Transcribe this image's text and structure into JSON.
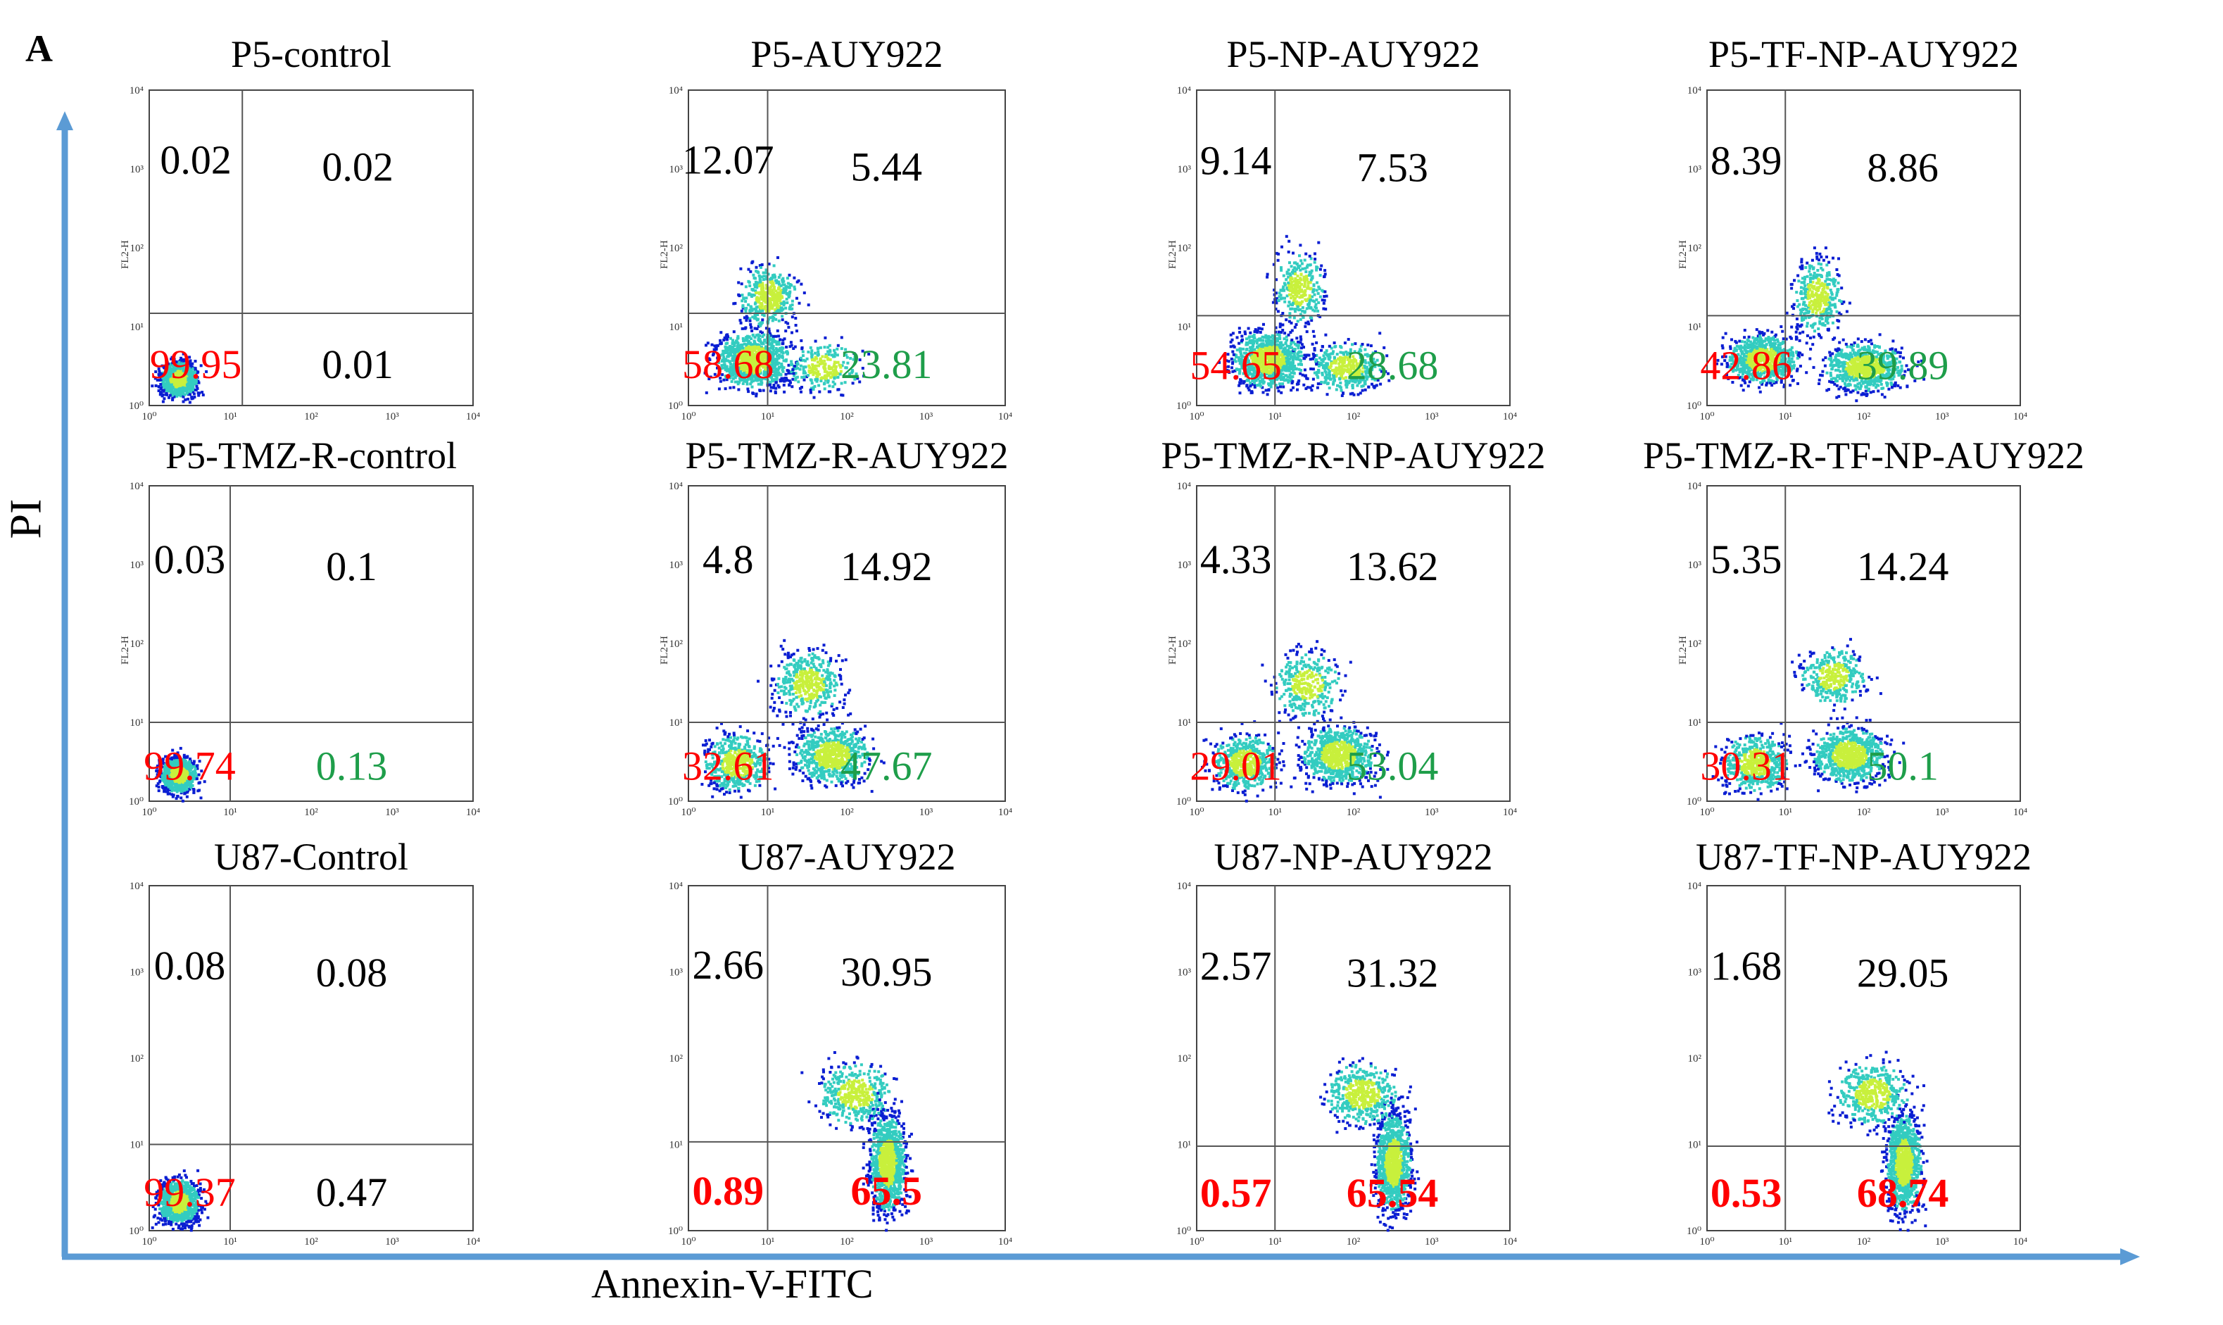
{
  "figure": {
    "panel_label": "A",
    "y_axis_label": "PI",
    "x_axis_label": "Annexin-V-FITC",
    "colors": {
      "axis_arrow": "#5b9bd5",
      "live_quadrant_text": "#ff0000",
      "early_apoptosis_text": "#1e9e4a",
      "other_quadrant_text": "#000000",
      "dot_dark": "#0a1ed2",
      "dot_light": "#33ccc0",
      "dot_core": "#c8f03c"
    },
    "small_axis": {
      "fl2_label": "FL2-H",
      "ticks": [
        "10⁰",
        "10¹",
        "10²",
        "10³",
        "10⁴"
      ]
    }
  },
  "chart_data": [
    {
      "type": "scatter",
      "title": "P5-control",
      "xlabel": "Annexin-V-FITC",
      "ylabel": "PI",
      "xlim": [
        1,
        10000
      ],
      "ylim": [
        1,
        10000
      ],
      "quadrants": {
        "upper_left": 0.02,
        "upper_right": 0.02,
        "lower_left": 99.95,
        "lower_right": 0.01
      }
    },
    {
      "type": "scatter",
      "title": "P5-AUY922",
      "xlabel": "Annexin-V-FITC",
      "ylabel": "PI",
      "xlim": [
        1,
        10000
      ],
      "ylim": [
        1,
        10000
      ],
      "quadrants": {
        "upper_left": 12.07,
        "upper_right": 5.44,
        "lower_left": 58.68,
        "lower_right": 23.81
      }
    },
    {
      "type": "scatter",
      "title": "P5-NP-AUY922",
      "xlabel": "Annexin-V-FITC",
      "ylabel": "PI",
      "xlim": [
        1,
        10000
      ],
      "ylim": [
        1,
        10000
      ],
      "quadrants": {
        "upper_left": 9.14,
        "upper_right": 7.53,
        "lower_left": 54.65,
        "lower_right": 28.68
      }
    },
    {
      "type": "scatter",
      "title": "P5-TF-NP-AUY922",
      "xlabel": "Annexin-V-FITC",
      "ylabel": "PI",
      "xlim": [
        1,
        10000
      ],
      "ylim": [
        1,
        10000
      ],
      "quadrants": {
        "upper_left": 8.39,
        "upper_right": 8.86,
        "lower_left": 42.86,
        "lower_right": 39.89
      }
    },
    {
      "type": "scatter",
      "title": "P5-TMZ-R-control",
      "xlabel": "Annexin-V-FITC",
      "ylabel": "PI",
      "xlim": [
        1,
        10000
      ],
      "ylim": [
        1,
        10000
      ],
      "quadrants": {
        "upper_left": 0.03,
        "upper_right": 0.1,
        "lower_left": 99.74,
        "lower_right": 0.13
      }
    },
    {
      "type": "scatter",
      "title": "P5-TMZ-R-AUY922",
      "xlabel": "Annexin-V-FITC",
      "ylabel": "PI",
      "xlim": [
        1,
        10000
      ],
      "ylim": [
        1,
        10000
      ],
      "quadrants": {
        "upper_left": 4.8,
        "upper_right": 14.92,
        "lower_left": 32.61,
        "lower_right": 47.67
      }
    },
    {
      "type": "scatter",
      "title": "P5-TMZ-R-NP-AUY922",
      "xlabel": "Annexin-V-FITC",
      "ylabel": "PI",
      "xlim": [
        1,
        10000
      ],
      "ylim": [
        1,
        10000
      ],
      "quadrants": {
        "upper_left": 4.33,
        "upper_right": 13.62,
        "lower_left": 29.01,
        "lower_right": 53.04
      }
    },
    {
      "type": "scatter",
      "title": "P5-TMZ-R-TF-NP-AUY922",
      "xlabel": "Annexin-V-FITC",
      "ylabel": "PI",
      "xlim": [
        1,
        10000
      ],
      "ylim": [
        1,
        10000
      ],
      "quadrants": {
        "upper_left": 5.35,
        "upper_right": 14.24,
        "lower_left": 30.31,
        "lower_right": 50.1
      }
    },
    {
      "type": "scatter",
      "title": "U87-Control",
      "xlabel": "Annexin-V-FITC",
      "ylabel": "PI",
      "xlim": [
        1,
        10000
      ],
      "ylim": [
        1,
        10000
      ],
      "quadrants": {
        "upper_left": 0.08,
        "upper_right": 0.08,
        "lower_left": 99.37,
        "lower_right": 0.47
      }
    },
    {
      "type": "scatter",
      "title": "U87-AUY922",
      "xlabel": "Annexin-V-FITC",
      "ylabel": "PI",
      "xlim": [
        1,
        10000
      ],
      "ylim": [
        1,
        10000
      ],
      "quadrants": {
        "upper_left": 2.66,
        "upper_right": 30.95,
        "lower_left": 0.89,
        "lower_right": 65.5
      }
    },
    {
      "type": "scatter",
      "title": "U87-NP-AUY922",
      "xlabel": "Annexin-V-FITC",
      "ylabel": "PI",
      "xlim": [
        1,
        10000
      ],
      "ylim": [
        1,
        10000
      ],
      "quadrants": {
        "upper_left": 2.57,
        "upper_right": 31.32,
        "lower_left": 0.57,
        "lower_right": 65.54
      }
    },
    {
      "type": "scatter",
      "title": "U87-TF-NP-AUY922",
      "xlabel": "Annexin-V-FITC",
      "ylabel": "PI",
      "xlim": [
        1,
        10000
      ],
      "ylim": [
        1,
        10000
      ],
      "quadrants": {
        "upper_left": 1.68,
        "upper_right": 29.05,
        "lower_left": 0.53,
        "lower_right": 68.74
      }
    }
  ]
}
